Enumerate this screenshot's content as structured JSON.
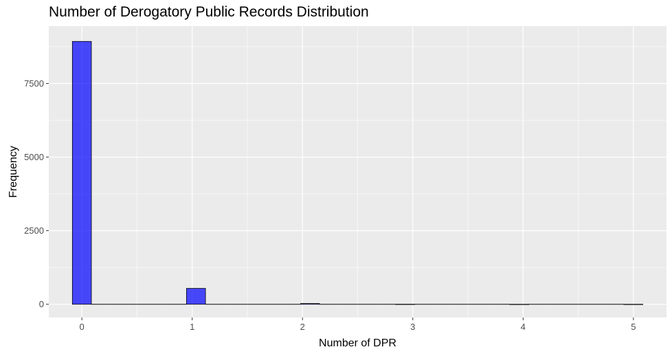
{
  "chart_data": {
    "type": "bar",
    "title": "Number of Derogatory Public Records Distribution",
    "xlabel": "Number of DPR",
    "ylabel": "Frequency",
    "xlim": [
      -0.3,
      5.3
    ],
    "ylim": [
      -450,
      9450
    ],
    "x_ticks": [
      0,
      1,
      2,
      3,
      4,
      5
    ],
    "y_ticks": [
      0,
      2500,
      5000,
      7500
    ],
    "x_tick_labels": [
      "0",
      "1",
      "2",
      "3",
      "4",
      "5"
    ],
    "y_tick_labels": [
      "0",
      "2500",
      "5000",
      "7500"
    ],
    "bin_width": 0.1724,
    "bins": [
      {
        "x": 0.0,
        "count": 8930
      },
      {
        "x": 1.0,
        "count": 540
      },
      {
        "x": 2.0,
        "count": 25
      },
      {
        "x": 3.0,
        "count": 3
      },
      {
        "x": 4.0,
        "count": 1
      },
      {
        "x": 5.0,
        "count": 1
      }
    ],
    "grid": true,
    "legend": "none",
    "colors": {
      "bar_fill": "#0000ff",
      "bar_fill_opacity": 0.7,
      "bar_outline": "#000000",
      "panel_background": "#ebebeb",
      "grid": "#ffffff"
    }
  }
}
